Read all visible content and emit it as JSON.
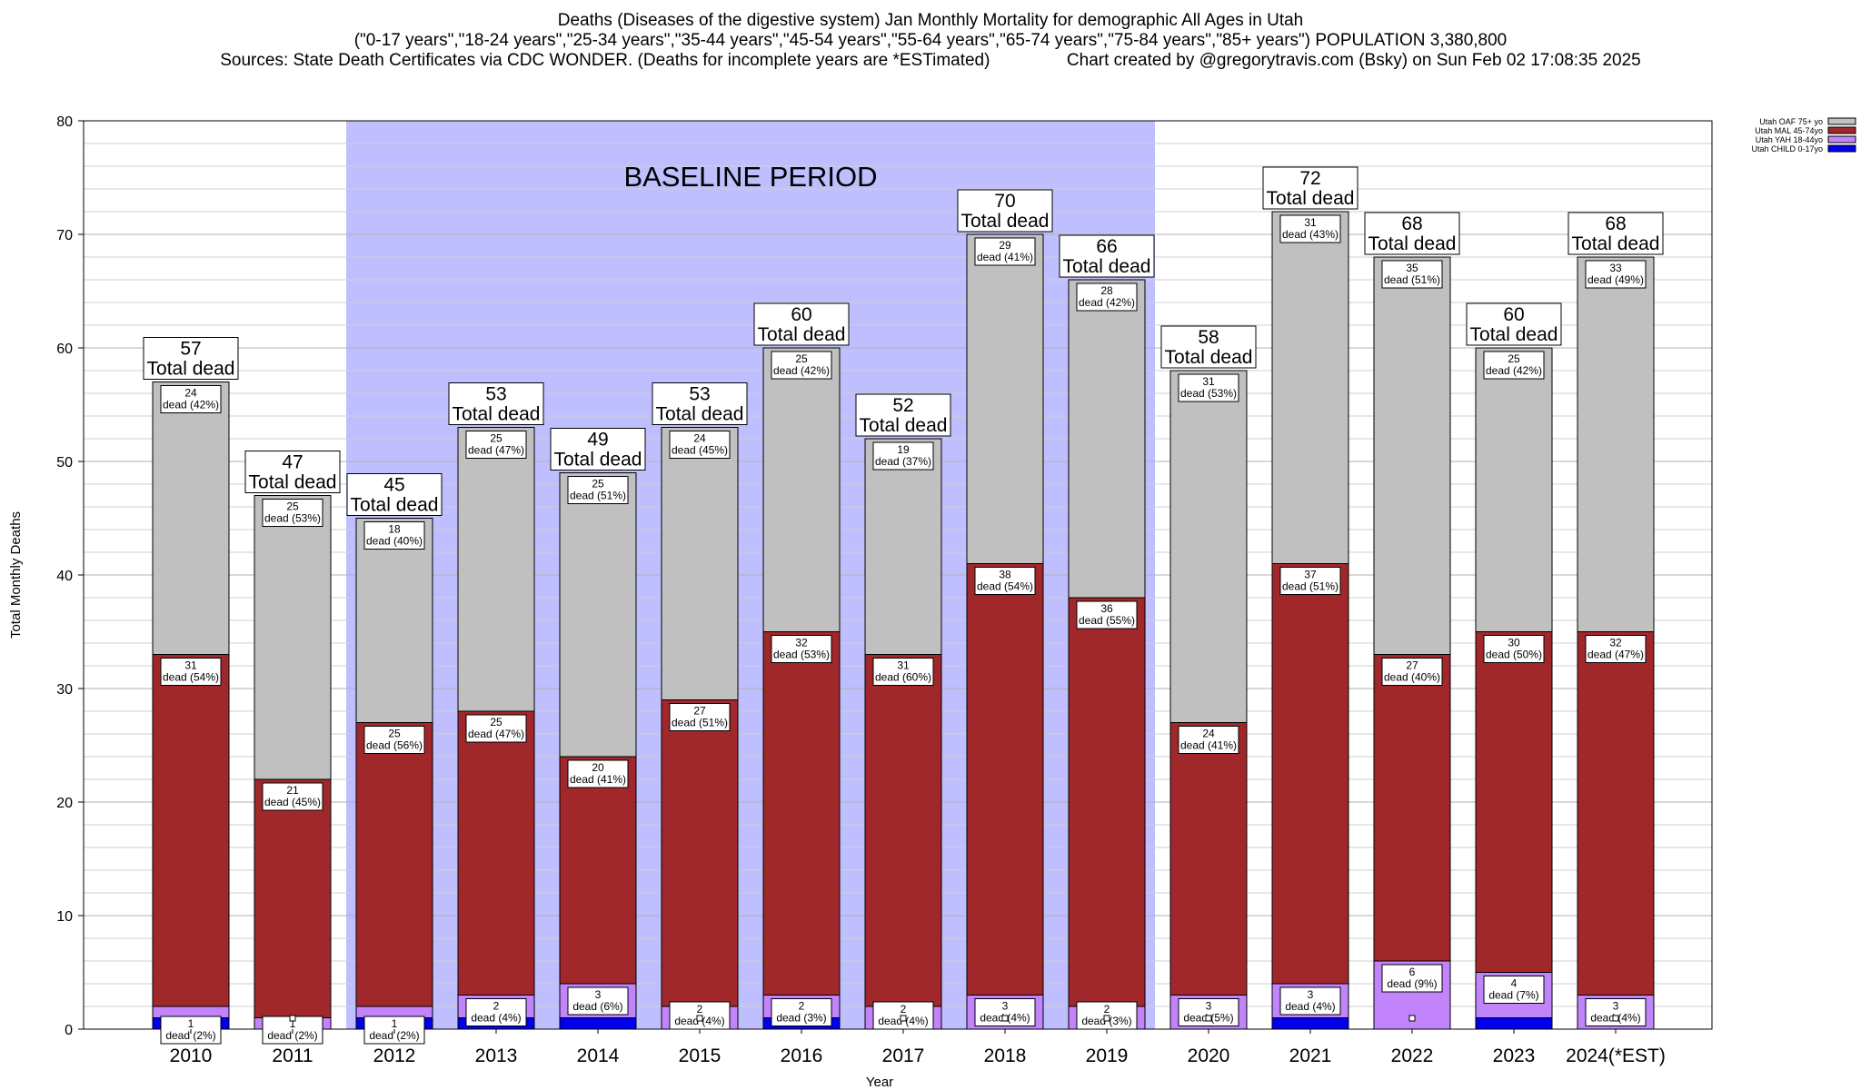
{
  "title": {
    "line1": "Deaths (Diseases of the digestive system) Jan Monthly Mortality for demographic All Ages in Utah",
    "line2": "(\"0-17 years\",\"18-24 years\",\"25-34 years\",\"35-44 years\",\"45-54 years\",\"55-64 years\",\"65-74 years\",\"75-84 years\",\"85+ years\") POPULATION 3,380,800",
    "line3": "Sources: State Death Certificates via CDC WONDER. (Deaths for incomplete years are *ESTimated)                Chart created by @gregorytravis.com (Bsky) on Sun Feb 02 17:08:35 2025"
  },
  "chart_data": {
    "type": "bar",
    "stacked": true,
    "xlabel": "Year",
    "ylabel": "Total Monthly Deaths",
    "ylim": [
      0,
      80
    ],
    "y_ticks": [
      0,
      10,
      20,
      30,
      40,
      50,
      60,
      70,
      80
    ],
    "grid": true,
    "legend_position": "top-right",
    "categories": [
      "2010",
      "2011",
      "2012",
      "2013",
      "2014",
      "2015",
      "2016",
      "2017",
      "2018",
      "2019",
      "2020",
      "2021",
      "2022",
      "2023",
      "2024(*EST)"
    ],
    "baseline_period": {
      "label": "BASELINE PERIOD",
      "start": "2012",
      "end": "2019",
      "color": "#bfbfff"
    },
    "total_suffix": "Total dead",
    "series": [
      {
        "name": "Utah CHILD 0-17yo",
        "color": "#0000ee",
        "values": [
          1,
          0,
          1,
          1,
          1,
          0,
          1,
          0,
          0,
          0,
          0,
          1,
          0,
          1,
          0
        ],
        "labels": [
          "",
          "",
          "",
          "",
          "",
          "",
          "",
          "",
          "",
          "",
          "",
          "",
          "",
          "",
          ""
        ]
      },
      {
        "name": "Utah YAH 18-44yo",
        "color": "#c184fb",
        "values": [
          1,
          1,
          1,
          2,
          3,
          2,
          2,
          2,
          3,
          2,
          3,
          3,
          6,
          4,
          3
        ],
        "labels": [
          "1\ndead (2%)",
          "1\ndead (2%)",
          "1\ndead (2%)",
          "2\ndead (4%)",
          "3\ndead (6%)",
          "2\ndead (4%)",
          "2\ndead (3%)",
          "2\ndead (4%)",
          "3\ndead (4%)",
          "2\ndead (3%)",
          "3\ndead (5%)",
          "3\ndead (4%)",
          "6\ndead (9%)",
          "4\ndead (7%)",
          "3\ndead (4%)"
        ]
      },
      {
        "name": "Utah MAL 45-74yo",
        "color": "#a0282b",
        "values": [
          31,
          21,
          25,
          25,
          20,
          27,
          32,
          31,
          38,
          36,
          24,
          37,
          27,
          30,
          32
        ],
        "labels": [
          "31\ndead (54%)",
          "21\ndead (45%)",
          "25\ndead (56%)",
          "25\ndead (47%)",
          "20\ndead (41%)",
          "27\ndead (51%)",
          "32\ndead (53%)",
          "31\ndead (60%)",
          "38\ndead (54%)",
          "36\ndead (55%)",
          "24\ndead (41%)",
          "37\ndead (51%)",
          "27\ndead (40%)",
          "30\ndead (50%)",
          "32\ndead (47%)"
        ]
      },
      {
        "name": "Utah OAF 75+ yo",
        "color": "#c0c0c0",
        "values": [
          24,
          25,
          18,
          25,
          25,
          24,
          25,
          19,
          29,
          28,
          31,
          31,
          35,
          25,
          33
        ],
        "labels": [
          "24\ndead (42%)",
          "25\ndead (53%)",
          "18\ndead (40%)",
          "25\ndead (47%)",
          "25\ndead (51%)",
          "24\ndead (45%)",
          "25\ndead (42%)",
          "19\ndead (37%)",
          "29\ndead (41%)",
          "28\ndead (42%)",
          "31\ndead (53%)",
          "31\ndead (43%)",
          "35\ndead (51%)",
          "25\ndead (42%)",
          "33\ndead (49%)"
        ]
      }
    ],
    "totals": [
      57,
      47,
      45,
      53,
      49,
      53,
      60,
      52,
      70,
      66,
      58,
      72,
      68,
      60,
      68
    ]
  }
}
